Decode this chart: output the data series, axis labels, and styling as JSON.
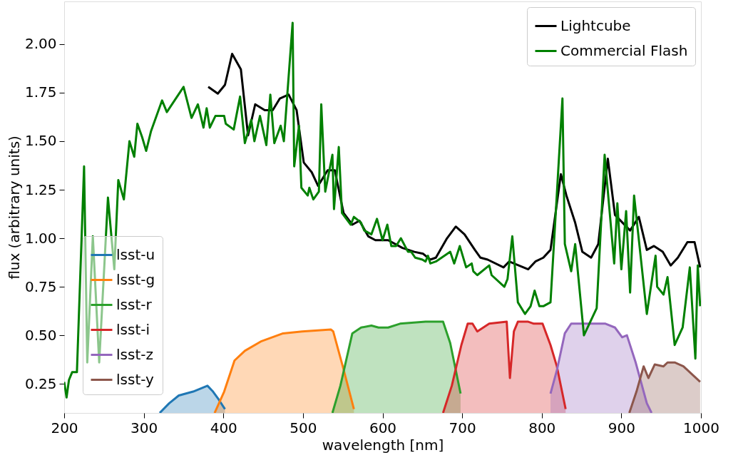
{
  "chart_data": {
    "type": "line",
    "xlabel": "wavelength [nm]",
    "ylabel": "flux (arbitrary units)",
    "xlim": [
      200,
      1000
    ],
    "xticks": [
      200,
      300,
      400,
      500,
      600,
      700,
      800,
      900,
      1000
    ],
    "ylim": [
      0.1,
      2.22
    ],
    "yticks": [
      {
        "value": 0.25,
        "label": "0.25"
      },
      {
        "value": 0.5,
        "label": "0.50"
      },
      {
        "value": 0.75,
        "label": "0.75"
      },
      {
        "value": 1,
        "label": "1.00"
      },
      {
        "value": 1.25,
        "label": "1.25"
      },
      {
        "value": 1.5,
        "label": "1.50"
      },
      {
        "value": 1.75,
        "label": "1.75"
      },
      {
        "value": 2,
        "label": "2.00"
      }
    ],
    "grid": false,
    "legend": [
      "top right",
      "bottom left"
    ],
    "series": [
      {
        "name": "Lightcube",
        "type": "line",
        "color": "#000000",
        "x": [
          381,
          393,
          402,
          411,
          422,
          431,
          440,
          452,
          462,
          471,
          482,
          492,
          501,
          511,
          519,
          531,
          540,
          551,
          562,
          571,
          582,
          591,
          607,
          625,
          640,
          651,
          660,
          667,
          681,
          692,
          703,
          716,
          723,
          732,
          752,
          759,
          783,
          792,
          802,
          811,
          824,
          831,
          842,
          851,
          862,
          871,
          883,
          892,
          911,
          922,
          932,
          941,
          952,
          962,
          971,
          983,
          992,
          999
        ],
        "values": [
          1.78,
          1.745,
          1.79,
          1.95,
          1.87,
          1.53,
          1.69,
          1.66,
          1.66,
          1.72,
          1.74,
          1.66,
          1.39,
          1.34,
          1.27,
          1.35,
          1.35,
          1.13,
          1.07,
          1.09,
          1.01,
          0.99,
          0.99,
          0.95,
          0.93,
          0.92,
          0.89,
          0.9,
          1.0,
          1.06,
          1.02,
          0.94,
          0.9,
          0.89,
          0.85,
          0.88,
          0.84,
          0.88,
          0.9,
          0.94,
          1.33,
          1.22,
          1.08,
          0.93,
          0.9,
          0.97,
          1.41,
          1.12,
          1.04,
          1.11,
          0.94,
          0.96,
          0.93,
          0.86,
          0.9,
          0.98,
          0.98,
          0.85
        ]
      },
      {
        "name": "Commercial Flash",
        "type": "line",
        "color": "#008000",
        "x": [
          200,
          203,
          206,
          210,
          216,
          225,
          229,
          236,
          244,
          255,
          263,
          268,
          275,
          282,
          288,
          292,
          298,
          303,
          309,
          323,
          329,
          350,
          360,
          368,
          375,
          379,
          383,
          390,
          401,
          403,
          413,
          421,
          427,
          435,
          439,
          446,
          454,
          459,
          464,
          472,
          476,
          487,
          489,
          495,
          498,
          506,
          508,
          513,
          520,
          523,
          528,
          537,
          539,
          545,
          549,
          560,
          564,
          573,
          577,
          586,
          593,
          600,
          606,
          611,
          617,
          623,
          632,
          636,
          641,
          650,
          654,
          657,
          660,
          667,
          685,
          690,
          697,
          705,
          712,
          714,
          719,
          734,
          737,
          753,
          757,
          763,
          770,
          779,
          786,
          791,
          797,
          802,
          811,
          826,
          829,
          837,
          842,
          853,
          869,
          879,
          891,
          895,
          900,
          906,
          911,
          916,
          932,
          943,
          945,
          953,
          958,
          967,
          977,
          986,
          993,
          996,
          999
        ],
        "values": [
          0.26,
          0.18,
          0.27,
          0.31,
          0.31,
          1.37,
          0.36,
          1.01,
          0.36,
          1.21,
          0.84,
          1.3,
          1.2,
          1.5,
          1.42,
          1.59,
          1.52,
          1.45,
          1.55,
          1.71,
          1.65,
          1.78,
          1.62,
          1.69,
          1.57,
          1.67,
          1.57,
          1.63,
          1.63,
          1.59,
          1.56,
          1.73,
          1.49,
          1.61,
          1.5,
          1.63,
          1.48,
          1.74,
          1.49,
          1.58,
          1.5,
          2.11,
          1.37,
          1.58,
          1.26,
          1.22,
          1.26,
          1.2,
          1.24,
          1.69,
          1.24,
          1.43,
          1.15,
          1.47,
          1.13,
          1.07,
          1.11,
          1.08,
          1.04,
          1.02,
          1.1,
          0.99,
          1.07,
          0.96,
          0.96,
          1.0,
          0.93,
          0.93,
          0.9,
          0.89,
          0.88,
          0.91,
          0.87,
          0.88,
          0.93,
          0.87,
          0.96,
          0.85,
          0.87,
          0.83,
          0.81,
          0.86,
          0.81,
          0.75,
          0.79,
          1.01,
          0.67,
          0.61,
          0.65,
          0.73,
          0.65,
          0.65,
          0.67,
          1.72,
          0.97,
          0.83,
          0.97,
          0.5,
          0.64,
          1.43,
          0.87,
          1.18,
          0.84,
          1.14,
          0.72,
          1.22,
          0.61,
          0.91,
          0.75,
          0.71,
          0.8,
          0.45,
          0.54,
          0.85,
          0.38,
          0.86,
          0.65
        ]
      },
      {
        "name": "lsst-u",
        "type": "area",
        "color": "#1f77b4",
        "x": [
          320,
          332,
          344,
          362,
          380,
          387,
          394,
          402
        ],
        "values": [
          0.1,
          0.15,
          0.19,
          0.21,
          0.24,
          0.21,
          0.17,
          0.12
        ]
      },
      {
        "name": "lsst-g",
        "type": "area",
        "color": "#ff7f0e",
        "x": [
          389,
          401,
          414,
          427,
          448,
          475,
          499,
          535,
          538,
          550,
          564
        ],
        "values": [
          0.1,
          0.21,
          0.37,
          0.42,
          0.47,
          0.51,
          0.52,
          0.53,
          0.52,
          0.34,
          0.12
        ]
      },
      {
        "name": "lsst-r",
        "type": "area",
        "color": "#2ca02c",
        "x": [
          537,
          547,
          562,
          573,
          586,
          595,
          607,
          622,
          654,
          667,
          676,
          685,
          698
        ],
        "values": [
          0.1,
          0.24,
          0.51,
          0.54,
          0.55,
          0.54,
          0.54,
          0.56,
          0.57,
          0.57,
          0.57,
          0.46,
          0.2
        ]
      },
      {
        "name": "lsst-i",
        "type": "area",
        "color": "#d62728",
        "x": [
          676,
          687,
          699,
          707,
          713,
          719,
          734,
          756,
          760,
          765,
          770,
          783,
          790,
          801,
          811,
          819,
          830
        ],
        "values": [
          0.1,
          0.24,
          0.45,
          0.56,
          0.56,
          0.52,
          0.56,
          0.57,
          0.28,
          0.52,
          0.57,
          0.57,
          0.56,
          0.56,
          0.45,
          0.34,
          0.12
        ]
      },
      {
        "name": "lsst-z",
        "type": "area",
        "color": "#9467bd",
        "x": [
          811,
          819,
          829,
          837,
          867,
          880,
          892,
          901,
          907,
          918,
          932,
          938
        ],
        "values": [
          0.2,
          0.32,
          0.51,
          0.56,
          0.56,
          0.56,
          0.54,
          0.49,
          0.5,
          0.36,
          0.15,
          0.1
        ]
      },
      {
        "name": "lsst-y",
        "type": "area",
        "color": "#8c564b",
        "x": [
          910,
          919,
          928,
          934,
          942,
          953,
          958,
          967,
          978,
          999
        ],
        "values": [
          0.1,
          0.21,
          0.34,
          0.28,
          0.35,
          0.34,
          0.36,
          0.36,
          0.34,
          0.26
        ]
      }
    ]
  }
}
